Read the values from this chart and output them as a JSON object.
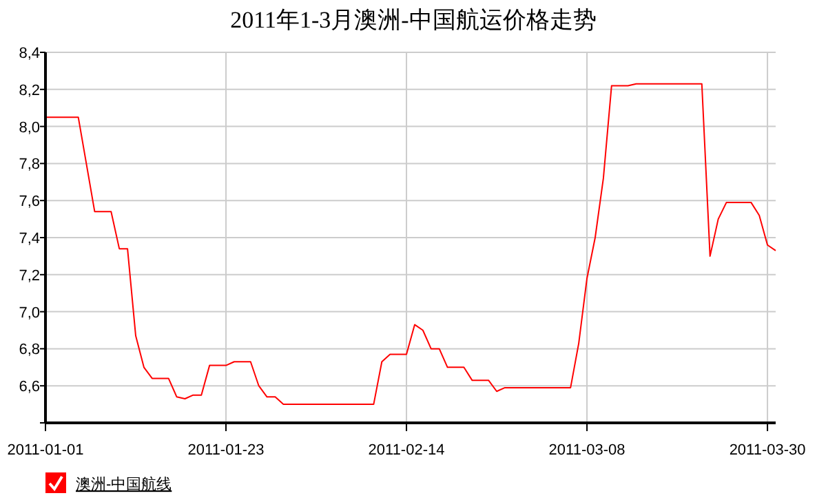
{
  "chart_data": {
    "type": "line",
    "title": "2011年1-3月澳洲-中国航运价格走势",
    "x": [
      "2011-01-01",
      "2011-01-05",
      "2011-01-07",
      "2011-01-09",
      "2011-01-10",
      "2011-01-11",
      "2011-01-12",
      "2011-01-13",
      "2011-01-14",
      "2011-01-16",
      "2011-01-17",
      "2011-01-18",
      "2011-01-19",
      "2011-01-20",
      "2011-01-21",
      "2011-01-23",
      "2011-01-24",
      "2011-01-26",
      "2011-01-27",
      "2011-01-28",
      "2011-01-29",
      "2011-01-30",
      "2011-02-10",
      "2011-02-11",
      "2011-02-12",
      "2011-02-14",
      "2011-02-15",
      "2011-02-16",
      "2011-02-17",
      "2011-02-18",
      "2011-02-19",
      "2011-02-21",
      "2011-02-22",
      "2011-02-24",
      "2011-02-25",
      "2011-02-26",
      "2011-02-28",
      "2011-03-01",
      "2011-03-06",
      "2011-03-07",
      "2011-03-08",
      "2011-03-09",
      "2011-03-10",
      "2011-03-11",
      "2011-03-13",
      "2011-03-14",
      "2011-03-22",
      "2011-03-23",
      "2011-03-24",
      "2011-03-25",
      "2011-03-28",
      "2011-03-29",
      "2011-03-30",
      "2011-03-31"
    ],
    "series": [
      {
        "name": "澳洲-中国航线",
        "color": "#ff0000",
        "values": [
          8.05,
          8.05,
          7.54,
          7.54,
          7.34,
          7.34,
          6.87,
          6.7,
          6.64,
          6.64,
          6.54,
          6.53,
          6.55,
          6.55,
          6.71,
          6.71,
          6.73,
          6.73,
          6.6,
          6.54,
          6.54,
          6.5,
          6.5,
          6.73,
          6.77,
          6.77,
          6.93,
          6.9,
          6.8,
          6.8,
          6.7,
          6.7,
          6.63,
          6.63,
          6.57,
          6.59,
          6.59,
          6.59,
          6.59,
          6.83,
          7.18,
          7.4,
          7.72,
          8.22,
          8.22,
          8.23,
          8.23,
          7.3,
          7.5,
          7.59,
          7.59,
          7.52,
          7.36,
          7.33
        ]
      }
    ],
    "xlim": [
      "2011-01-01",
      "2011-03-31"
    ],
    "xticks": [
      "2011-01-01",
      "2011-01-23",
      "2011-02-14",
      "2011-03-08",
      "2011-03-30"
    ],
    "ylim": [
      6.4,
      8.4
    ],
    "yticks": [
      {
        "value": 6.4,
        "label": null
      },
      {
        "value": 6.6,
        "label": "6,6"
      },
      {
        "value": 6.8,
        "label": "6,8"
      },
      {
        "value": 7.0,
        "label": "7,0"
      },
      {
        "value": 7.2,
        "label": "7,2"
      },
      {
        "value": 7.4,
        "label": "7,4"
      },
      {
        "value": 7.6,
        "label": "7,6"
      },
      {
        "value": 7.8,
        "label": "7,8"
      },
      {
        "value": 8.0,
        "label": "8,0"
      },
      {
        "value": 8.2,
        "label": "8,2"
      },
      {
        "value": 8.4,
        "label": "8,4"
      }
    ],
    "grid": true,
    "legend": "bottom left",
    "marker": "none",
    "line_style": "solid"
  }
}
